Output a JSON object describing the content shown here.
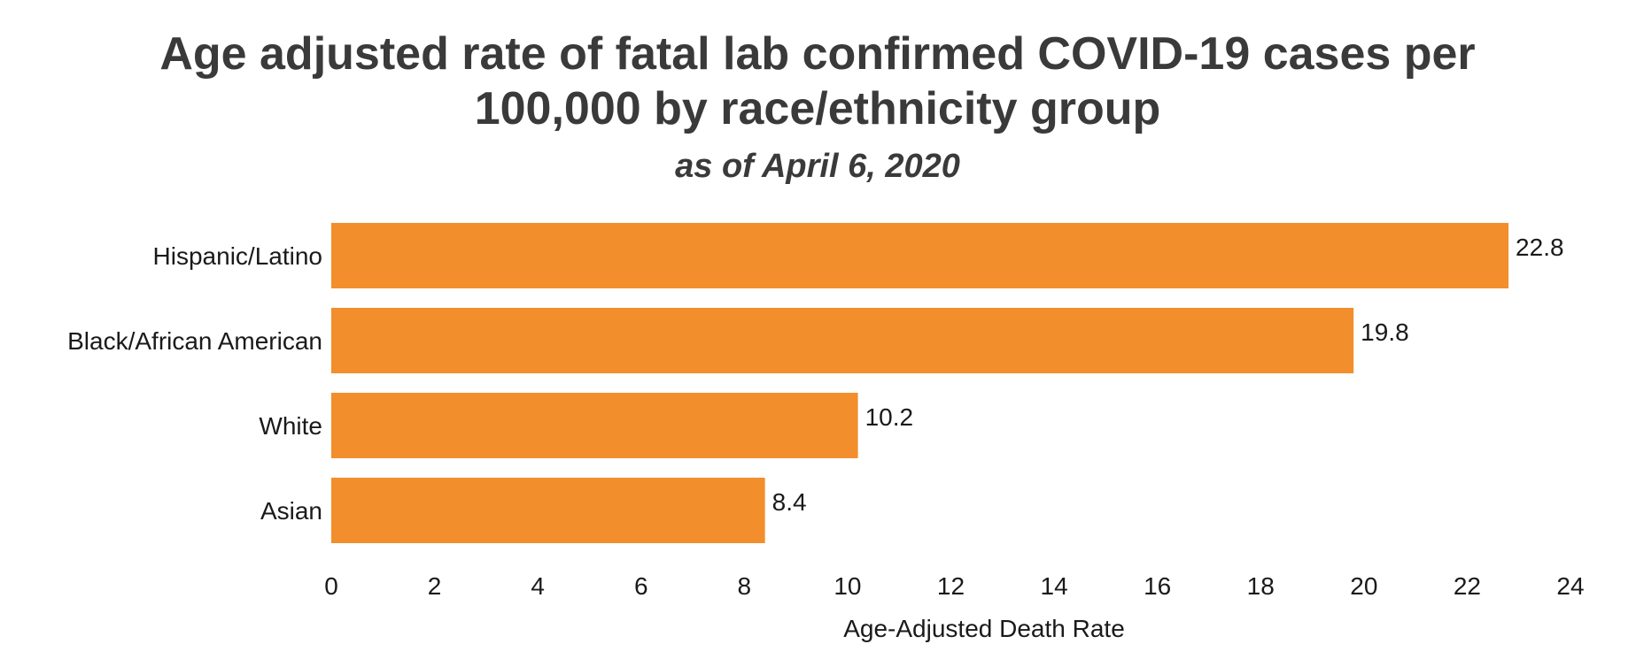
{
  "chart_data": {
    "type": "bar",
    "orientation": "horizontal",
    "title_lines": [
      "Age adjusted rate of fatal lab confirmed COVID-19 cases per",
      "100,000 by race/ethnicity group"
    ],
    "subtitle": "as of April 6, 2020",
    "categories": [
      "Hispanic/Latino",
      "Black/African American",
      "White",
      "Asian"
    ],
    "values": [
      22.8,
      19.8,
      10.2,
      8.4
    ],
    "value_labels": [
      "22.8",
      "19.8",
      "10.2",
      "8.4"
    ],
    "xlabel": "Age-Adjusted Death Rate",
    "ylabel": "",
    "xlim": [
      0,
      24
    ],
    "xticks": [
      0,
      2,
      4,
      6,
      8,
      10,
      12,
      14,
      16,
      18,
      20,
      22,
      24
    ],
    "grid": false,
    "legend": "none",
    "bar_color": "#f28e2b"
  }
}
